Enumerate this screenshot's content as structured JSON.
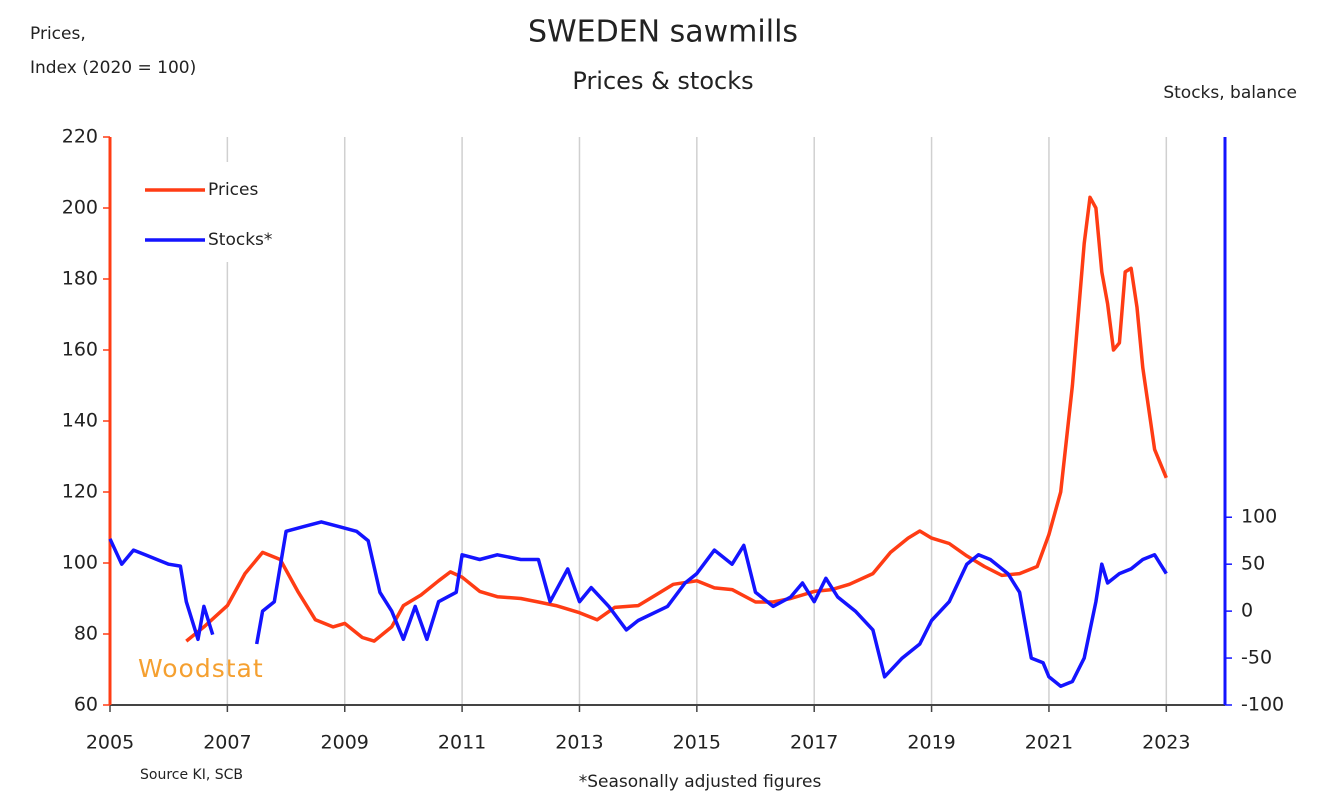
{
  "chart_data": {
    "type": "line",
    "title": "SWEDEN sawmills",
    "subtitle": "Prices & stocks",
    "ylabel": [
      "Prices,",
      "Index (2020 = 100)"
    ],
    "y2label": "Stocks, balance",
    "source": "Source KI, SCB",
    "note": "*Seasonally adjusted figures",
    "watermark": "Woodstat",
    "xlim": [
      2005,
      2024
    ],
    "xticks": [
      2005,
      2007,
      2009,
      2011,
      2013,
      2015,
      2017,
      2019,
      2021,
      2023
    ],
    "ylim": [
      60,
      220
    ],
    "yticks": [
      60,
      80,
      100,
      120,
      140,
      160,
      180,
      200,
      220
    ],
    "y2lim": [
      -100,
      505
    ],
    "y2ticks": [
      -100,
      -50,
      0,
      50,
      100
    ],
    "grid": true,
    "legend": "upper left",
    "series": [
      {
        "name": "Prices",
        "color": "#ff3c14",
        "x": [
          2006.3,
          2006.6,
          2007.0,
          2007.3,
          2007.6,
          2007.9,
          2008.2,
          2008.5,
          2008.8,
          2009.0,
          2009.3,
          2009.5,
          2009.8,
          2010.0,
          2010.3,
          2010.6,
          2010.8,
          2011.0,
          2011.3,
          2011.6,
          2012.0,
          2012.3,
          2012.6,
          2013.0,
          2013.3,
          2013.6,
          2014.0,
          2014.3,
          2014.6,
          2015.0,
          2015.3,
          2015.6,
          2016.0,
          2016.3,
          2016.6,
          2017.0,
          2017.3,
          2017.6,
          2018.0,
          2018.3,
          2018.6,
          2018.8,
          2019.0,
          2019.3,
          2019.6,
          2019.9,
          2020.2,
          2020.5,
          2020.8,
          2021.0,
          2021.2,
          2021.4,
          2021.6,
          2021.7,
          2021.8,
          2021.9,
          2022.0,
          2022.1,
          2022.2,
          2022.3,
          2022.4,
          2022.5,
          2022.6,
          2022.8,
          2023.0
        ],
        "values": [
          78,
          82,
          88,
          97,
          103,
          101,
          92,
          84,
          82,
          83,
          79,
          78,
          82,
          88,
          91,
          95,
          97.5,
          96,
          92,
          90.5,
          90,
          89,
          88,
          86,
          84,
          87.5,
          88,
          91,
          94,
          95,
          93,
          92.5,
          89,
          89,
          90,
          92,
          92.5,
          94,
          97,
          103,
          107,
          109,
          107,
          105.5,
          102,
          99,
          96.5,
          97,
          99,
          108,
          120,
          150,
          190,
          203,
          200,
          182,
          173,
          160,
          162,
          182,
          183,
          172,
          155,
          132,
          124
        ]
      },
      {
        "name": "Stocks*",
        "color": "#1414ff",
        "axis": "y2",
        "x": [
          2005.0,
          2005.2,
          2005.4,
          2005.6,
          2005.8,
          2006.0,
          2006.2,
          2006.3,
          2006.5,
          2006.6,
          2006.75,
          2007.1,
          2007.5,
          2007.6,
          2007.8,
          2008.0,
          2008.3,
          2008.6,
          2008.9,
          2009.2,
          2009.4,
          2009.6,
          2009.8,
          2010.0,
          2010.2,
          2010.4,
          2010.6,
          2010.9,
          2011.0,
          2011.3,
          2011.6,
          2012.0,
          2012.3,
          2012.5,
          2012.8,
          2013.0,
          2013.2,
          2013.5,
          2013.8,
          2014.0,
          2014.5,
          2014.8,
          2015.0,
          2015.3,
          2015.6,
          2015.8,
          2016.0,
          2016.3,
          2016.6,
          2016.8,
          2017.0,
          2017.2,
          2017.4,
          2017.7,
          2018.0,
          2018.2,
          2018.5,
          2018.8,
          2019.0,
          2019.3,
          2019.6,
          2019.8,
          2020.0,
          2020.3,
          2020.5,
          2020.7,
          2020.9,
          2021.0,
          2021.2,
          2021.4,
          2021.6,
          2021.8,
          2021.9,
          2022.0,
          2022.2,
          2022.4,
          2022.6,
          2022.8,
          2023.0
        ],
        "values": [
          77,
          50,
          65,
          60,
          55,
          50,
          48,
          10,
          -30,
          5,
          -25,
          null,
          -35,
          0,
          10,
          85,
          90,
          95,
          90,
          85,
          75,
          20,
          0,
          -30,
          5,
          -30,
          10,
          20,
          60,
          55,
          60,
          55,
          55,
          10,
          45,
          10,
          25,
          5,
          -20,
          -10,
          5,
          30,
          40,
          65,
          50,
          70,
          20,
          5,
          15,
          30,
          10,
          35,
          15,
          0,
          -20,
          -70,
          -50,
          -35,
          -10,
          10,
          50,
          60,
          55,
          40,
          20,
          -50,
          -55,
          -70,
          -80,
          -75,
          -50,
          10,
          50,
          30,
          40,
          45,
          55,
          60,
          40
        ]
      }
    ]
  }
}
